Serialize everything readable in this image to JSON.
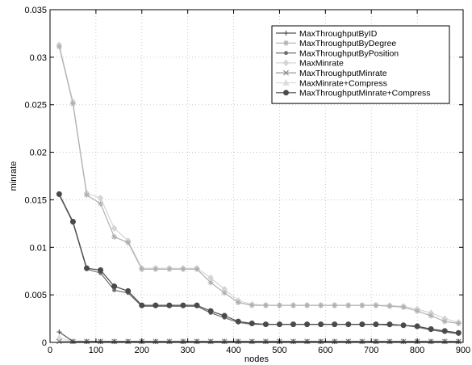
{
  "chart_data": {
    "type": "line",
    "xlabel": "nodes",
    "ylabel": "minrate",
    "xlim": [
      0,
      900
    ],
    "ylim": [
      0,
      0.035
    ],
    "xticks": [
      0,
      100,
      200,
      300,
      400,
      500,
      600,
      700,
      800,
      900
    ],
    "xtick_labels": [
      "0",
      "100",
      "200",
      "300",
      "400",
      "500",
      "600",
      "700",
      "800",
      "900"
    ],
    "yticks": [
      0,
      0.005,
      0.01,
      0.015,
      0.02,
      0.025,
      0.03,
      0.035
    ],
    "ytick_labels": [
      "0",
      "0.005",
      "0.01",
      "0.015",
      "0.02",
      "0.025",
      "0.03",
      "0.035"
    ],
    "grid": true,
    "legend_position": "top-right",
    "x": [
      20,
      50,
      80,
      110,
      140,
      170,
      200,
      230,
      260,
      290,
      320,
      350,
      380,
      410,
      440,
      470,
      500,
      530,
      560,
      590,
      620,
      650,
      680,
      710,
      740,
      770,
      800,
      830,
      860,
      890
    ],
    "series": [
      {
        "name": "MaxThroughputByID",
        "color": "#555555",
        "marker": "plus",
        "values": [
          0.0011,
          0.0001,
          0.0001,
          0.0001,
          0.0001,
          0.0001,
          0.0001,
          0.0001,
          0.0001,
          0.0001,
          0.0001,
          0.0001,
          0.0001,
          0.0001,
          0.0001,
          0.0001,
          0.0001,
          0.0001,
          0.0001,
          0.0001,
          0.0001,
          0.0001,
          0.0001,
          0.0001,
          0.0001,
          0.0001,
          0.0001,
          0.0001,
          0.0001,
          0.0001
        ]
      },
      {
        "name": "MaxThroughputByDegree",
        "color": "#b0b0b0",
        "marker": "star",
        "values": [
          0.0311,
          0.0251,
          0.0155,
          0.0146,
          0.0111,
          0.0105,
          0.0077,
          0.0077,
          0.0077,
          0.0077,
          0.0077,
          0.0063,
          0.0052,
          0.0042,
          0.0039,
          0.0039,
          0.0039,
          0.0039,
          0.0039,
          0.0039,
          0.0039,
          0.0039,
          0.0039,
          0.0039,
          0.0038,
          0.0037,
          0.0033,
          0.0028,
          0.0022,
          0.002
        ]
      },
      {
        "name": "MaxThroughputByPosition",
        "color": "#6e6e6e",
        "marker": "dot",
        "values": [
          0.0155,
          0.0126,
          0.0077,
          0.0073,
          0.0055,
          0.0052,
          0.0038,
          0.0038,
          0.0038,
          0.0038,
          0.0038,
          0.0031,
          0.0026,
          0.0021,
          0.0019,
          0.0019,
          0.0019,
          0.0019,
          0.0019,
          0.0019,
          0.0019,
          0.0019,
          0.0019,
          0.0019,
          0.0018,
          0.0018,
          0.0016,
          0.0013,
          0.0011,
          0.0009
        ]
      },
      {
        "name": "MaxMinrate",
        "color": "#d5d5d5",
        "marker": "diamond",
        "values": [
          0.0313,
          0.0253,
          0.0157,
          0.0152,
          0.012,
          0.0107,
          0.0078,
          0.0078,
          0.0078,
          0.0078,
          0.0078,
          0.0068,
          0.0056,
          0.0044,
          0.004,
          0.0039,
          0.0039,
          0.0039,
          0.0039,
          0.0039,
          0.0039,
          0.0039,
          0.0039,
          0.0039,
          0.0039,
          0.0038,
          0.0035,
          0.0031,
          0.0025,
          0.0021
        ]
      },
      {
        "name": "MaxThroughputMinrate",
        "color": "#8a8a8a",
        "marker": "x",
        "values": [
          0.0001,
          0.0001,
          0.0001,
          0.0001,
          0.0001,
          0.0001,
          0.0001,
          0.0001,
          0.0001,
          0.0001,
          0.0001,
          0.0001,
          0.0001,
          0.0001,
          0.0001,
          0.0001,
          0.0001,
          0.0001,
          0.0001,
          0.0001,
          0.0001,
          0.0001,
          0.0001,
          0.0001,
          0.0001,
          0.0001,
          0.0001,
          0.0001,
          0.0001,
          0.0001
        ]
      },
      {
        "name": "MaxMinrate+Compress",
        "color": "#dcdcdc",
        "marker": "triangle",
        "values": [
          0.0005,
          0.0001,
          0.0001,
          0.0001,
          0.0001,
          0.0001,
          0.0001,
          0.0001,
          0.0001,
          0.0001,
          0.0001,
          0.0001,
          0.0001,
          0.0001,
          0.0001,
          0.0001,
          0.0001,
          0.0001,
          0.0001,
          0.0001,
          0.0001,
          0.0001,
          0.0001,
          0.0001,
          0.0001,
          0.0001,
          0.0001,
          0.0001,
          0.0001,
          0.0001
        ]
      },
      {
        "name": "MaxThroughputMinrate+Compress",
        "color": "#4a4a4a",
        "marker": "circle",
        "values": [
          0.0156,
          0.0127,
          0.0078,
          0.0076,
          0.0059,
          0.0054,
          0.0039,
          0.0039,
          0.0039,
          0.0039,
          0.0039,
          0.0033,
          0.0028,
          0.0022,
          0.002,
          0.0019,
          0.0019,
          0.0019,
          0.0019,
          0.0019,
          0.0019,
          0.0019,
          0.0019,
          0.0019,
          0.0019,
          0.0018,
          0.0017,
          0.0014,
          0.0012,
          0.001
        ]
      }
    ]
  }
}
